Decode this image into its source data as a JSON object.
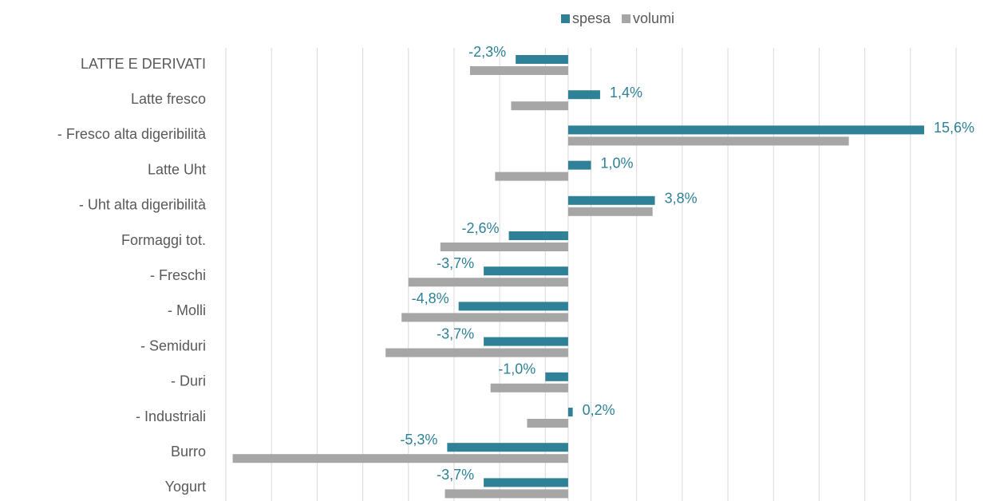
{
  "chart_data": {
    "type": "bar",
    "orientation": "horizontal",
    "categories": [
      "LATTE E DERIVATI",
      "Latte fresco",
      "- Fresco alta digeribilità",
      "Latte Uht",
      "- Uht alta digeribilità",
      "Formaggi tot.",
      "- Freschi",
      "- Molli",
      "- Semiduri",
      "- Duri",
      "- Industriali",
      "Burro",
      "Yogurt"
    ],
    "series": [
      {
        "name": "spesa",
        "color": "#2e8196",
        "values": [
          -2.3,
          1.4,
          15.6,
          1.0,
          3.8,
          -2.6,
          -3.7,
          -4.8,
          -3.7,
          -1.0,
          0.2,
          -5.3,
          -3.7
        ],
        "value_labels": [
          "-2,3%",
          "1,4%",
          "15,6%",
          "1,0%",
          "3,8%",
          "-2,6%",
          "-3,7%",
          "-4,8%",
          "-3,7%",
          "-1,0%",
          "0,2%",
          "-5,3%",
          "-3,7%"
        ]
      },
      {
        "name": "volumi",
        "color": "#a6a6a6",
        "values": [
          -4.3,
          -2.5,
          12.3,
          -3.2,
          3.7,
          -5.6,
          -7.0,
          -7.3,
          -8.0,
          -3.4,
          -1.8,
          -14.7,
          -5.4
        ]
      }
    ],
    "xlim": [
      -15,
      17
    ],
    "xticks": [
      -15,
      -13,
      -11,
      -9,
      -7,
      -5,
      -3,
      -1,
      1,
      3,
      5,
      7,
      9,
      11,
      13,
      15,
      17
    ],
    "grid": true,
    "legend": "top"
  }
}
